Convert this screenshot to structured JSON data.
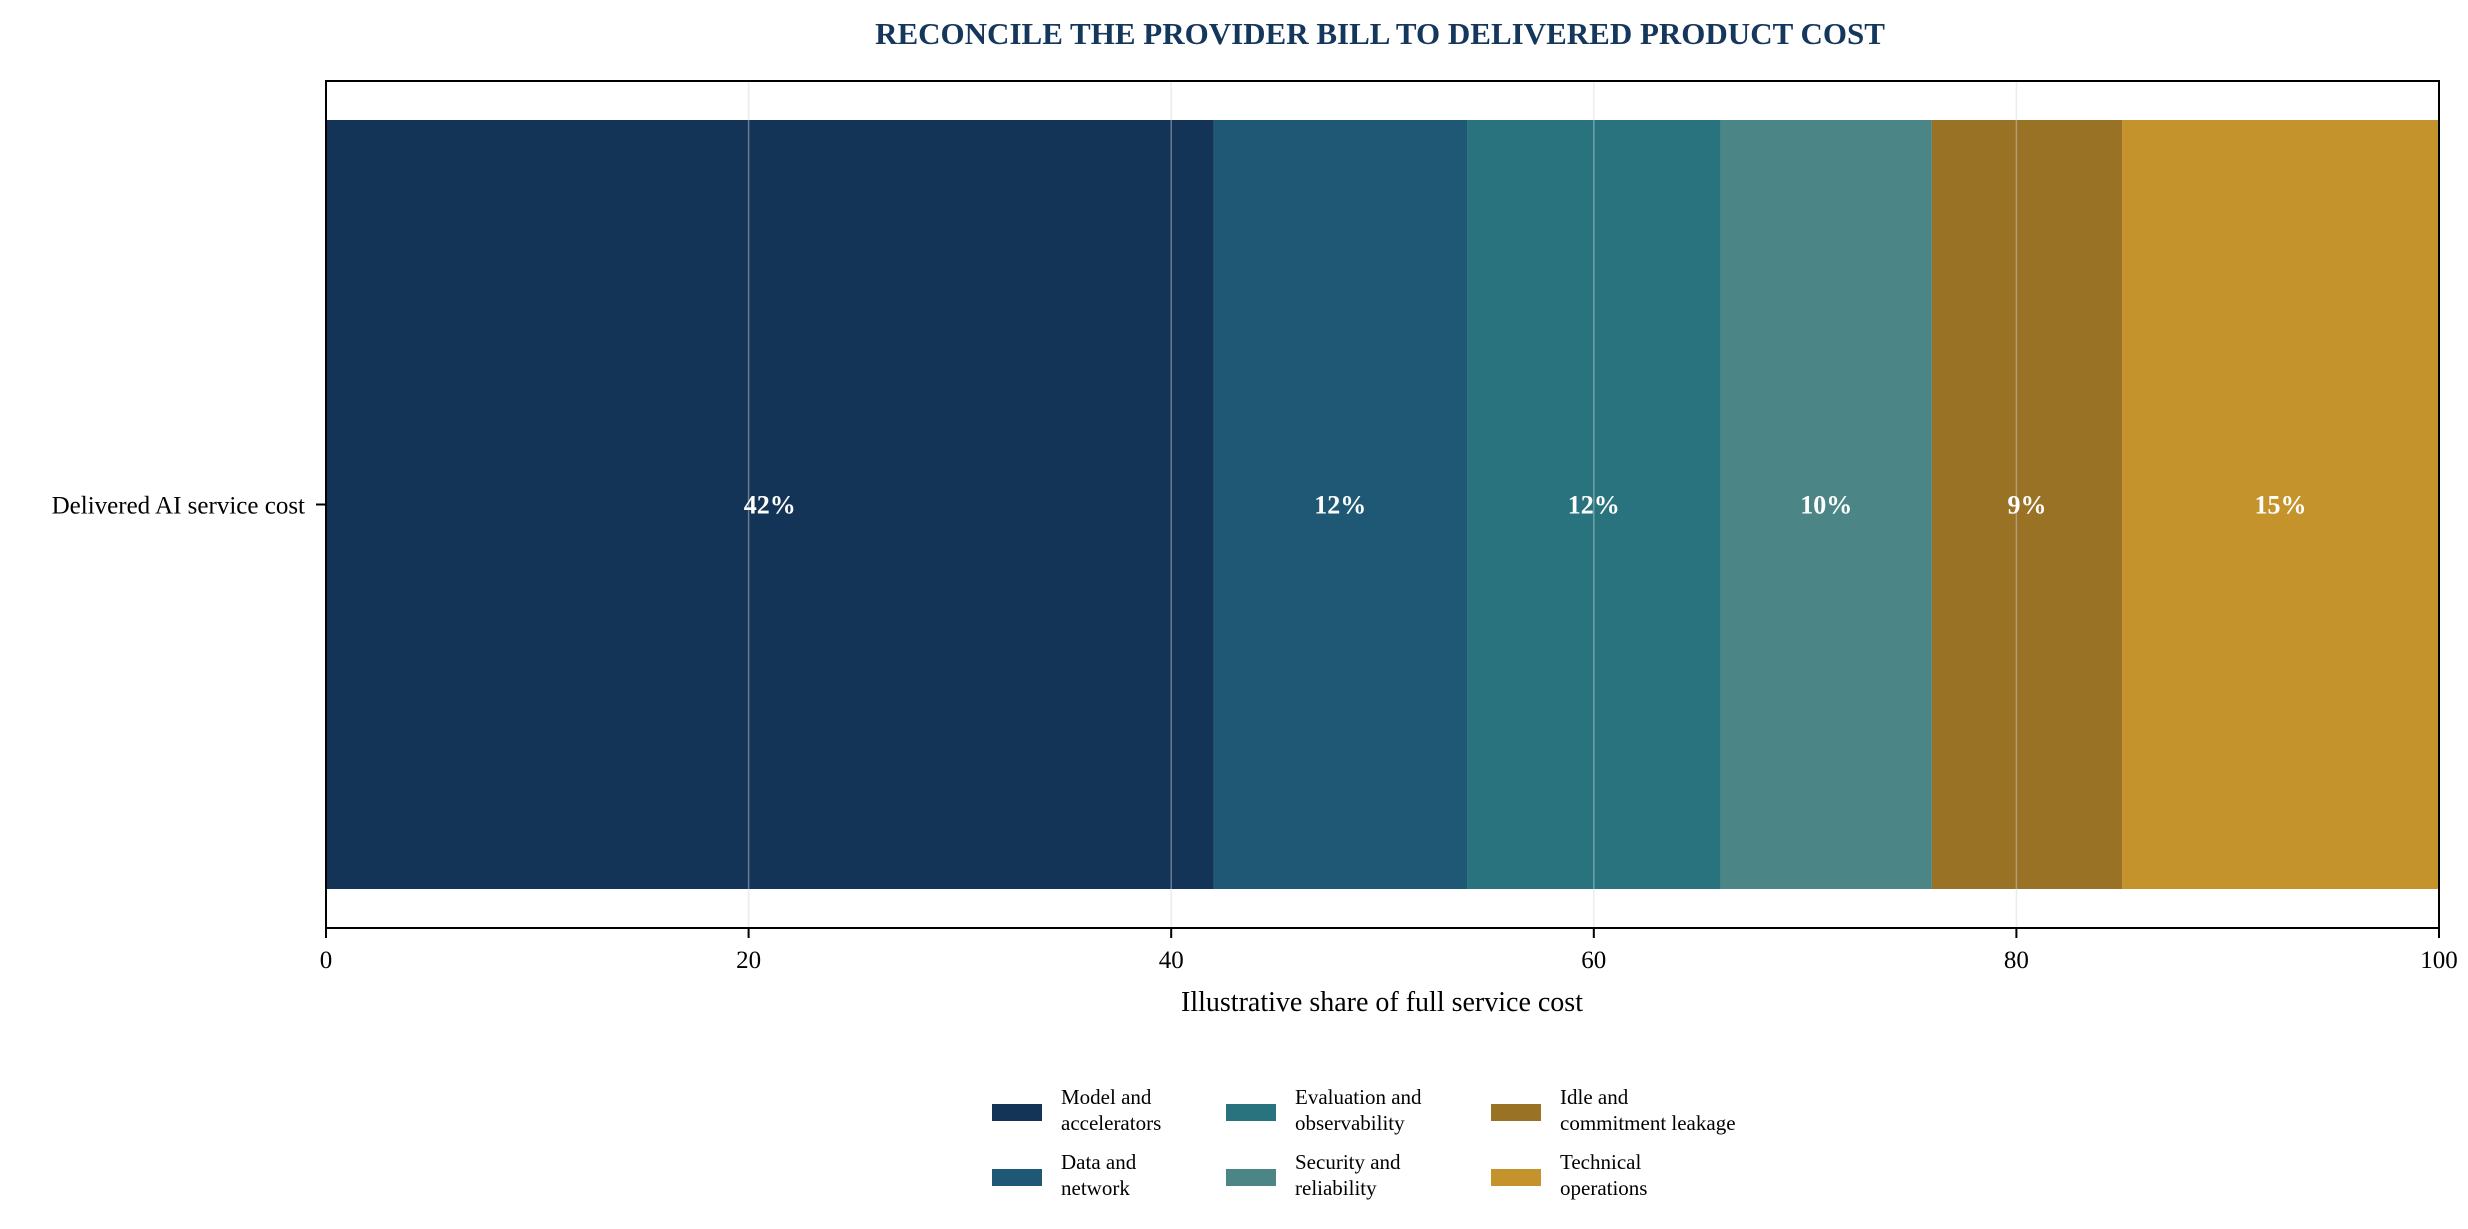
{
  "chart_data": {
    "type": "bar",
    "orientation": "horizontal",
    "stacked": true,
    "title": "RECONCILE THE PROVIDER BILL TO DELIVERED PRODUCT COST",
    "xlabel": "Illustrative share of full service cost",
    "ylabel": "",
    "categories": [
      "Delivered AI service cost"
    ],
    "xlim": [
      0,
      100
    ],
    "xticks": [
      0,
      20,
      40,
      60,
      80,
      100
    ],
    "grid": "vertical",
    "legend_position": "bottom-center",
    "series": [
      {
        "name": "Model and accelerators",
        "legend_lines": [
          "Model and",
          "accelerators"
        ],
        "values": [
          42
        ],
        "label": "42%",
        "color": "#143457"
      },
      {
        "name": "Data and network",
        "legend_lines": [
          "Data and",
          "network"
        ],
        "values": [
          12
        ],
        "label": "12%",
        "color": "#1f5874"
      },
      {
        "name": "Evaluation and observability",
        "legend_lines": [
          "Evaluation and",
          "observability"
        ],
        "values": [
          12
        ],
        "label": "12%",
        "color": "#28737d"
      },
      {
        "name": "Security and reliability",
        "legend_lines": [
          "Security and",
          "reliability"
        ],
        "values": [
          10
        ],
        "label": "10%",
        "color": "#4b8585"
      },
      {
        "name": "Idle and commitment leakage",
        "legend_lines": [
          "Idle and",
          "commitment leakage"
        ],
        "values": [
          9
        ],
        "label": "9%",
        "color": "#9a7226"
      },
      {
        "name": "Technical operations",
        "legend_lines": [
          "Technical",
          "operations"
        ],
        "values": [
          15
        ],
        "label": "15%",
        "color": "#c4932c"
      }
    ]
  }
}
